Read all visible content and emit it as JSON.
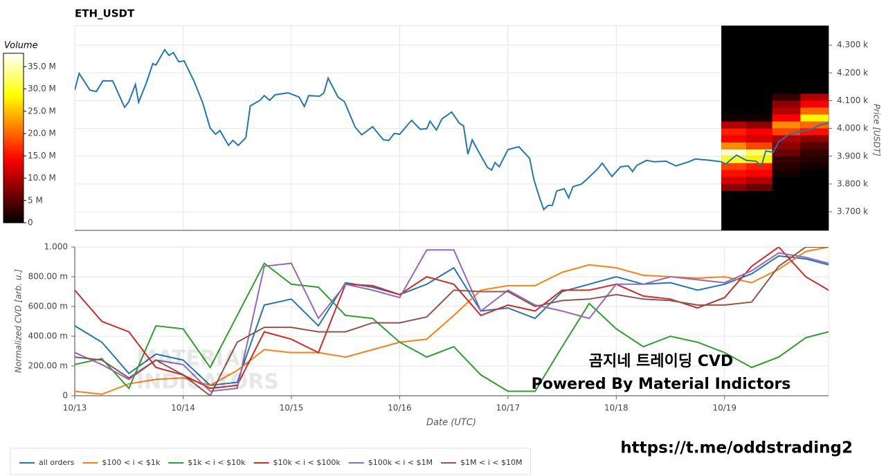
{
  "chart_data": [
    {
      "type": "line",
      "title": "ETH_USDT",
      "ylabel": "Price [USDT]",
      "color": "#1f77b4",
      "xlim": [
        0,
        6.96
      ],
      "ylim": [
        3633,
        4370
      ],
      "yticks": [
        {
          "value": 3700,
          "label": "3.700 k"
        },
        {
          "value": 3800,
          "label": "3.800 k"
        },
        {
          "value": 3900,
          "label": "3.900 k"
        },
        {
          "value": 4000,
          "label": "4.000 k"
        },
        {
          "value": 4100,
          "label": "4.100 k"
        },
        {
          "value": 4200,
          "label": "4.200 k"
        },
        {
          "value": 4300,
          "label": "4.300 k"
        }
      ],
      "grid": true,
      "x": [
        0.0,
        0.04,
        0.14,
        0.2,
        0.26,
        0.35,
        0.46,
        0.5,
        0.56,
        0.59,
        0.66,
        0.72,
        0.75,
        0.83,
        0.87,
        0.91,
        0.96,
        1.01,
        1.1,
        1.18,
        1.25,
        1.3,
        1.34,
        1.42,
        1.46,
        1.51,
        1.58,
        1.62,
        1.71,
        1.75,
        1.8,
        1.85,
        1.97,
        2.07,
        2.12,
        2.16,
        2.26,
        2.3,
        2.34,
        2.43,
        2.49,
        2.59,
        2.65,
        2.75,
        2.85,
        2.9,
        2.95,
        3.0,
        3.11,
        3.19,
        3.25,
        3.28,
        3.34,
        3.39,
        3.48,
        3.55,
        3.59,
        3.63,
        3.67,
        3.72,
        3.81,
        3.85,
        3.88,
        3.92,
        4.0,
        4.1,
        4.2,
        4.24,
        4.29,
        4.33,
        4.37,
        4.41,
        4.45,
        4.52,
        4.56,
        4.6,
        4.68,
        4.75,
        4.83,
        4.87,
        4.96,
        5.04,
        5.11,
        5.15,
        5.19,
        5.28,
        5.35,
        5.46,
        5.55,
        5.67,
        5.73,
        5.87,
        5.97,
        6.01,
        6.11,
        6.2,
        6.29,
        6.34,
        6.38,
        6.45,
        6.5,
        6.59,
        6.7,
        6.8,
        6.89,
        6.96
      ],
      "values": [
        4138,
        4198,
        4138,
        4133,
        4171,
        4171,
        4076,
        4096,
        4158,
        4094,
        4163,
        4233,
        4228,
        4283,
        4263,
        4273,
        4240,
        4243,
        4171,
        4094,
        4001,
        3979,
        3992,
        3939,
        3957,
        3939,
        3967,
        4081,
        4101,
        4118,
        4101,
        4121,
        4128,
        4113,
        4079,
        4118,
        4116,
        4128,
        4181,
        4113,
        4096,
        4004,
        3977,
        4006,
        3959,
        3957,
        3982,
        3979,
        4029,
        3997,
        3999,
        4026,
        3994,
        4034,
        4059,
        4019,
        4009,
        3907,
        3959,
        3922,
        3860,
        3850,
        3877,
        3862,
        3924,
        3934,
        3892,
        3815,
        3753,
        3708,
        3723,
        3723,
        3775,
        3783,
        3750,
        3790,
        3800,
        3825,
        3855,
        3875,
        3827,
        3862,
        3865,
        3845,
        3867,
        3885,
        3880,
        3882,
        3865,
        3880,
        3890,
        3885,
        3880,
        3872,
        3904,
        3885,
        3882,
        3865,
        3919,
        3914,
        3952,
        3977,
        3989,
        3997,
        4014,
        4019
      ],
      "heatmap": {
        "x_edges": [
          5.97,
          6.2,
          6.44,
          6.7,
          6.96
        ],
        "y_edges": [
          3775,
          3800,
          3825,
          3850,
          3875,
          3900,
          3925,
          3950,
          3975,
          4000,
          4025,
          4050,
          4075,
          4100,
          4125
        ],
        "values": [
          [
            8000000.0,
            6000000.0,
            0,
            0
          ],
          [
            12000000.0,
            10000000.0,
            0,
            0
          ],
          [
            15000000.0,
            14000000.0,
            1000000.0,
            0
          ],
          [
            18000000.0,
            16000000.0,
            2000000.0,
            1000000.0
          ],
          [
            30000000.0,
            28000000.0,
            3000000.0,
            2000000.0
          ],
          [
            36000000.0,
            32000000.0,
            6000000.0,
            3000000.0
          ],
          [
            22000000.0,
            18000000.0,
            8000000.0,
            5000000.0
          ],
          [
            14000000.0,
            12000000.0,
            10000000.0,
            8000000.0
          ],
          [
            16000000.0,
            14000000.0,
            18000000.0,
            15000000.0
          ],
          [
            10000000.0,
            8000000.0,
            22000000.0,
            20000000.0
          ],
          [
            1000000.0,
            1000000.0,
            14000000.0,
            28000000.0
          ],
          [
            0,
            0,
            10000000.0,
            20000000.0
          ],
          [
            0,
            0,
            8000000.0,
            14000000.0
          ],
          [
            0,
            0,
            3000000.0,
            10000000.0
          ]
        ]
      },
      "colorbar": {
        "title": "Volume",
        "clim": [
          0,
          38000000
        ],
        "ticks": [
          0,
          {
            "value": 5000000,
            "label": "5 M"
          },
          {
            "value": 10000000,
            "label": "10.0 M"
          },
          {
            "value": 15000000,
            "label": "15.0 M"
          },
          {
            "value": 20000000,
            "label": "20.0 M"
          },
          {
            "value": 25000000,
            "label": "25.0 M"
          },
          {
            "value": 30000000,
            "label": "30.0 M"
          },
          {
            "value": 35000000,
            "label": "35.0 M"
          }
        ]
      }
    },
    {
      "type": "line",
      "xlabel": "Date (UTC)",
      "ylabel": "Normalized CVD [arb. u.]",
      "xlim": [
        0,
        6.96
      ],
      "ylim": [
        0,
        1
      ],
      "xticks": [
        {
          "value": 0,
          "label": "10/13"
        },
        {
          "value": 1,
          "label": "10/14"
        },
        {
          "value": 2,
          "label": "10/15"
        },
        {
          "value": 3,
          "label": "10/16"
        },
        {
          "value": 4,
          "label": "10/17"
        },
        {
          "value": 5,
          "label": "10/18"
        },
        {
          "value": 6,
          "label": "10/19"
        }
      ],
      "yticks": [
        0,
        {
          "value": 0.2,
          "label": "200.00 m"
        },
        {
          "value": 0.4,
          "label": "400.00 m"
        },
        {
          "value": 0.6,
          "label": "600.00 m"
        },
        {
          "value": 0.8,
          "label": "800.00 m"
        },
        {
          "value": 1,
          "label": "1.000"
        }
      ],
      "grid": true,
      "legend": "bottom",
      "x": [
        0,
        0.25,
        0.5,
        0.75,
        1,
        1.25,
        1.5,
        1.75,
        2,
        2.25,
        2.5,
        2.75,
        3,
        3.25,
        3.5,
        3.75,
        4,
        4.25,
        4.5,
        4.75,
        5,
        5.25,
        5.5,
        5.75,
        6,
        6.25,
        6.5,
        6.75,
        6.96
      ],
      "series": [
        {
          "name": "all orders",
          "color": "#1f77b4",
          "values": [
            0.47,
            0.36,
            0.15,
            0.28,
            0.24,
            0.07,
            0.09,
            0.61,
            0.65,
            0.47,
            0.76,
            0.73,
            0.68,
            0.75,
            0.86,
            0.57,
            0.59,
            0.52,
            0.7,
            0.75,
            0.8,
            0.75,
            0.76,
            0.71,
            0.75,
            0.82,
            0.94,
            0.92,
            0.88
          ]
        },
        {
          "name": "$100 < i < $1k",
          "color": "#ff7f0e",
          "values": [
            0.03,
            0.01,
            0.08,
            0.11,
            0.12,
            0.07,
            0.17,
            0.31,
            0.29,
            0.29,
            0.26,
            0.31,
            0.36,
            0.38,
            0.54,
            0.71,
            0.74,
            0.74,
            0.83,
            0.88,
            0.86,
            0.81,
            0.8,
            0.79,
            0.8,
            0.76,
            0.85,
            0.97,
            1.0
          ]
        },
        {
          "name": "$1k < i < $10k",
          "color": "#2ca02c",
          "values": [
            0.21,
            0.25,
            0.05,
            0.47,
            0.45,
            0.19,
            0.54,
            0.89,
            0.75,
            0.73,
            0.54,
            0.52,
            0.36,
            0.26,
            0.33,
            0.14,
            0.03,
            0.03,
            0.33,
            0.62,
            0.45,
            0.33,
            0.4,
            0.36,
            0.29,
            0.19,
            0.26,
            0.39,
            0.43
          ]
        },
        {
          "name": "$10k < i < $100k",
          "color": "#d62728",
          "values": [
            0.71,
            0.5,
            0.43,
            0.19,
            0.14,
            0.05,
            0.07,
            0.43,
            0.38,
            0.29,
            0.75,
            0.74,
            0.68,
            0.8,
            0.75,
            0.54,
            0.61,
            0.57,
            0.71,
            0.71,
            0.75,
            0.67,
            0.65,
            0.59,
            0.66,
            0.87,
            1.0,
            0.8,
            0.71
          ]
        },
        {
          "name": "$100k < i < $1M",
          "color": "#9467bd",
          "values": [
            0.29,
            0.21,
            0.11,
            0.24,
            0.21,
            0.03,
            0.05,
            0.87,
            0.89,
            0.52,
            0.75,
            0.71,
            0.66,
            0.98,
            0.98,
            0.57,
            0.71,
            0.61,
            0.57,
            0.52,
            0.75,
            0.75,
            0.8,
            0.78,
            0.76,
            0.84,
            0.96,
            0.93,
            0.89
          ]
        },
        {
          "name": "$1M < i < $10M",
          "color": "#8c564b",
          "values": [
            0.26,
            0.24,
            0.12,
            0.24,
            0.14,
            0.0,
            0.36,
            0.46,
            0.46,
            0.43,
            0.43,
            0.49,
            0.49,
            0.53,
            0.71,
            0.7,
            0.7,
            0.6,
            0.64,
            0.65,
            0.68,
            0.65,
            0.64,
            0.61,
            0.61,
            0.63,
            0.87,
            1.0,
            1.0
          ]
        }
      ],
      "watermark": [
        "MATERIAL",
        "INDICATORS"
      ],
      "annotations": [
        "곰지네 트레이딩 CVD",
        "Powered By Material Indictors"
      ]
    }
  ],
  "link": "https://t.me/oddstrading2"
}
